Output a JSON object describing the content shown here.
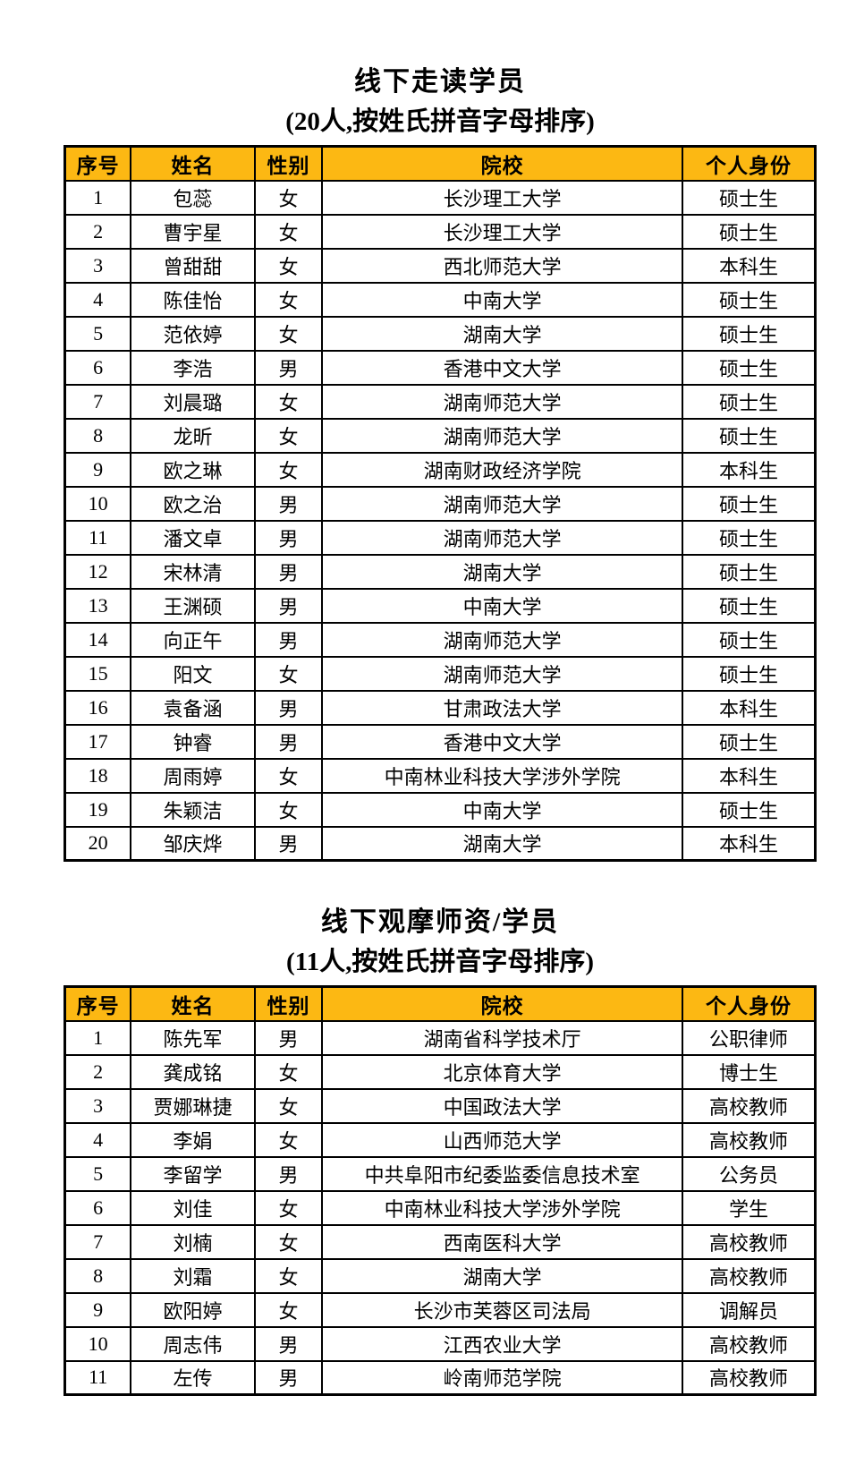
{
  "colors": {
    "header_bg": "#FCB813",
    "header_text": "#000000",
    "border": "#000000",
    "page_bg": "#FFFFFF"
  },
  "sections": [
    {
      "title": "线下走读学员",
      "subtitle": "(20人,按姓氏拼音字母排序)",
      "headers": [
        "序号",
        "姓名",
        "性别",
        "院校",
        "个人身份"
      ],
      "rows": [
        [
          "1",
          "包蕊",
          "女",
          "长沙理工大学",
          "硕士生"
        ],
        [
          "2",
          "曹宇星",
          "女",
          "长沙理工大学",
          "硕士生"
        ],
        [
          "3",
          "曾甜甜",
          "女",
          "西北师范大学",
          "本科生"
        ],
        [
          "4",
          "陈佳怡",
          "女",
          "中南大学",
          "硕士生"
        ],
        [
          "5",
          "范依婷",
          "女",
          "湖南大学",
          "硕士生"
        ],
        [
          "6",
          "李浩",
          "男",
          "香港中文大学",
          "硕士生"
        ],
        [
          "7",
          "刘晨璐",
          "女",
          "湖南师范大学",
          "硕士生"
        ],
        [
          "8",
          "龙昕",
          "女",
          "湖南师范大学",
          "硕士生"
        ],
        [
          "9",
          "欧之琳",
          "女",
          "湖南财政经济学院",
          "本科生"
        ],
        [
          "10",
          "欧之治",
          "男",
          "湖南师范大学",
          "硕士生"
        ],
        [
          "11",
          "潘文卓",
          "男",
          "湖南师范大学",
          "硕士生"
        ],
        [
          "12",
          "宋林清",
          "男",
          "湖南大学",
          "硕士生"
        ],
        [
          "13",
          "王渊硕",
          "男",
          "中南大学",
          "硕士生"
        ],
        [
          "14",
          "向正午",
          "男",
          "湖南师范大学",
          "硕士生"
        ],
        [
          "15",
          "阳文",
          "女",
          "湖南师范大学",
          "硕士生"
        ],
        [
          "16",
          "袁备涵",
          "男",
          "甘肃政法大学",
          "本科生"
        ],
        [
          "17",
          "钟睿",
          "男",
          "香港中文大学",
          "硕士生"
        ],
        [
          "18",
          "周雨婷",
          "女",
          "中南林业科技大学涉外学院",
          "本科生"
        ],
        [
          "19",
          "朱颖洁",
          "女",
          "中南大学",
          "硕士生"
        ],
        [
          "20",
          "邹庆烨",
          "男",
          "湖南大学",
          "本科生"
        ]
      ]
    },
    {
      "title": "线下观摩师资/学员",
      "subtitle": "(11人,按姓氏拼音字母排序)",
      "headers": [
        "序号",
        "姓名",
        "性别",
        "院校",
        "个人身份"
      ],
      "rows": [
        [
          "1",
          "陈先军",
          "男",
          "湖南省科学技术厅",
          "公职律师"
        ],
        [
          "2",
          "龚成铭",
          "女",
          "北京体育大学",
          "博士生"
        ],
        [
          "3",
          "贾娜琳捷",
          "女",
          "中国政法大学",
          "高校教师"
        ],
        [
          "4",
          "李娟",
          "女",
          "山西师范大学",
          "高校教师"
        ],
        [
          "5",
          "李留学",
          "男",
          "中共阜阳市纪委监委信息技术室",
          "公务员"
        ],
        [
          "6",
          "刘佳",
          "女",
          "中南林业科技大学涉外学院",
          "学生"
        ],
        [
          "7",
          "刘楠",
          "女",
          "西南医科大学",
          "高校教师"
        ],
        [
          "8",
          "刘霜",
          "女",
          "湖南大学",
          "高校教师"
        ],
        [
          "9",
          "欧阳婷",
          "女",
          "长沙市芙蓉区司法局",
          "调解员"
        ],
        [
          "10",
          "周志伟",
          "男",
          "江西农业大学",
          "高校教师"
        ],
        [
          "11",
          "左传",
          "男",
          "岭南师范学院",
          "高校教师"
        ]
      ]
    }
  ]
}
